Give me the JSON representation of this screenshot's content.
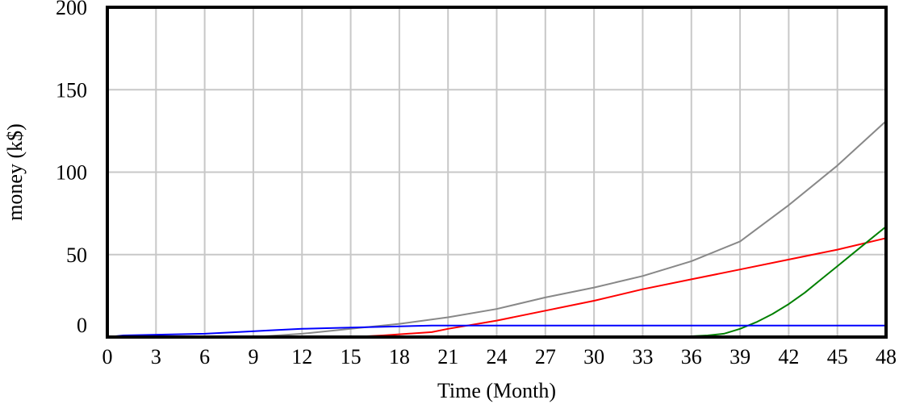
{
  "chart_data": {
    "type": "line",
    "title": "",
    "xlabel": "Time (Month)",
    "ylabel": "money (k$)",
    "xlim": [
      0,
      48
    ],
    "ylim": [
      0,
      200
    ],
    "x_ticks": [
      0,
      3,
      6,
      9,
      12,
      15,
      18,
      21,
      24,
      27,
      30,
      33,
      36,
      39,
      42,
      45,
      48
    ],
    "y_ticks": [
      0,
      50,
      100,
      150,
      200
    ],
    "grid": true,
    "legend": "none",
    "series": [
      {
        "color": "#888888",
        "x": [
          0,
          9,
          12,
          15,
          18,
          21,
          24,
          27,
          30,
          33,
          36,
          39,
          42,
          45,
          48
        ],
        "y": [
          0,
          0,
          2,
          5,
          8,
          12,
          17,
          24,
          30,
          37,
          46,
          58,
          80,
          104,
          131
        ]
      },
      {
        "color": "#ff0000",
        "x": [
          0,
          15,
          17,
          20,
          21,
          24,
          27,
          30,
          33,
          36,
          39,
          42,
          45,
          48
        ],
        "y": [
          0,
          0,
          1,
          3,
          5,
          10,
          16,
          22,
          29,
          35,
          41,
          47,
          53,
          60
        ]
      },
      {
        "color": "#008000",
        "x": [
          0,
          35,
          37,
          38,
          39,
          40,
          41,
          42,
          43,
          44,
          45,
          46,
          47,
          48
        ],
        "y": [
          0,
          0,
          1,
          2,
          5,
          9,
          14,
          20,
          27,
          35,
          43,
          51,
          59,
          67
        ]
      },
      {
        "color": "#0000ff",
        "x": [
          0,
          1,
          6,
          8,
          10,
          12,
          14,
          16,
          18,
          20,
          21,
          22,
          48
        ],
        "y": [
          0,
          1,
          2,
          3,
          4,
          5,
          5.5,
          6,
          6.5,
          7,
          7,
          7,
          7
        ]
      }
    ]
  }
}
